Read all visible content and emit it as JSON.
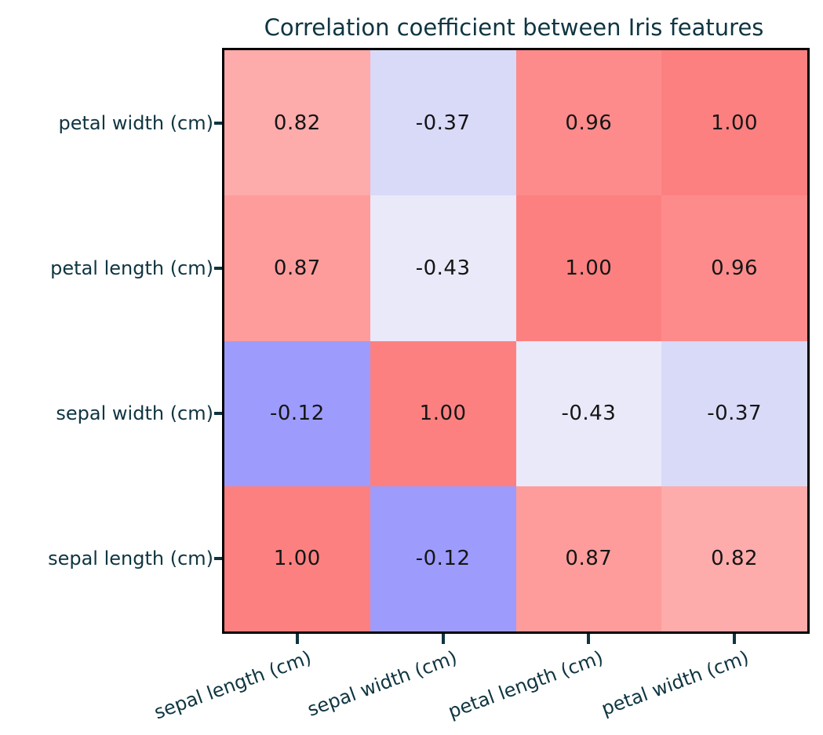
{
  "figure": {
    "background": "#ffffff",
    "border_color": "#000000",
    "text_color": "#0f3541",
    "cell_text_color": "#151515"
  },
  "chart_data": {
    "type": "heatmap",
    "title": "Correlation coefficient between Iris features",
    "x_labels": [
      "sepal length (cm)",
      "sepal width (cm)",
      "petal length (cm)",
      "petal width (cm)"
    ],
    "y_labels_top_to_bottom": [
      "petal width (cm)",
      "petal length (cm)",
      "sepal width (cm)",
      "sepal length (cm)"
    ],
    "x_tick_rotation_deg": 20,
    "legend": "none",
    "grid": "off",
    "value_color_map": {
      "1.00": "#fd8080",
      "0.96": "#fd8b8b",
      "0.87": "#fe9c9c",
      "0.82": "#fdabab",
      "-0.12": "#9d9cfc",
      "-0.37": "#d9d9f8",
      "-0.43": "#e9e9f9"
    },
    "rows": [
      {
        "y_label": "petal width (cm)",
        "cells": [
          {
            "label": "0.82",
            "value": 0.82,
            "color": "#fdabab"
          },
          {
            "label": "-0.37",
            "value": -0.37,
            "color": "#d9d9f8"
          },
          {
            "label": "0.96",
            "value": 0.96,
            "color": "#fd8b8b"
          },
          {
            "label": "1.00",
            "value": 1.0,
            "color": "#fd8080"
          }
        ]
      },
      {
        "y_label": "petal length (cm)",
        "cells": [
          {
            "label": "0.87",
            "value": 0.87,
            "color": "#fe9c9c"
          },
          {
            "label": "-0.43",
            "value": -0.43,
            "color": "#e9e9f9"
          },
          {
            "label": "1.00",
            "value": 1.0,
            "color": "#fd8080"
          },
          {
            "label": "0.96",
            "value": 0.96,
            "color": "#fd8b8b"
          }
        ]
      },
      {
        "y_label": "sepal width (cm)",
        "cells": [
          {
            "label": "-0.12",
            "value": -0.12,
            "color": "#9d9cfc"
          },
          {
            "label": "1.00",
            "value": 1.0,
            "color": "#fd8080"
          },
          {
            "label": "-0.43",
            "value": -0.43,
            "color": "#e9e9f9"
          },
          {
            "label": "-0.37",
            "value": -0.37,
            "color": "#d9d9f8"
          }
        ]
      },
      {
        "y_label": "sepal length (cm)",
        "cells": [
          {
            "label": "1.00",
            "value": 1.0,
            "color": "#fd8080"
          },
          {
            "label": "-0.12",
            "value": -0.12,
            "color": "#9d9cfc"
          },
          {
            "label": "0.87",
            "value": 0.87,
            "color": "#fe9c9c"
          },
          {
            "label": "0.82",
            "value": 0.82,
            "color": "#fdabab"
          }
        ]
      }
    ]
  }
}
